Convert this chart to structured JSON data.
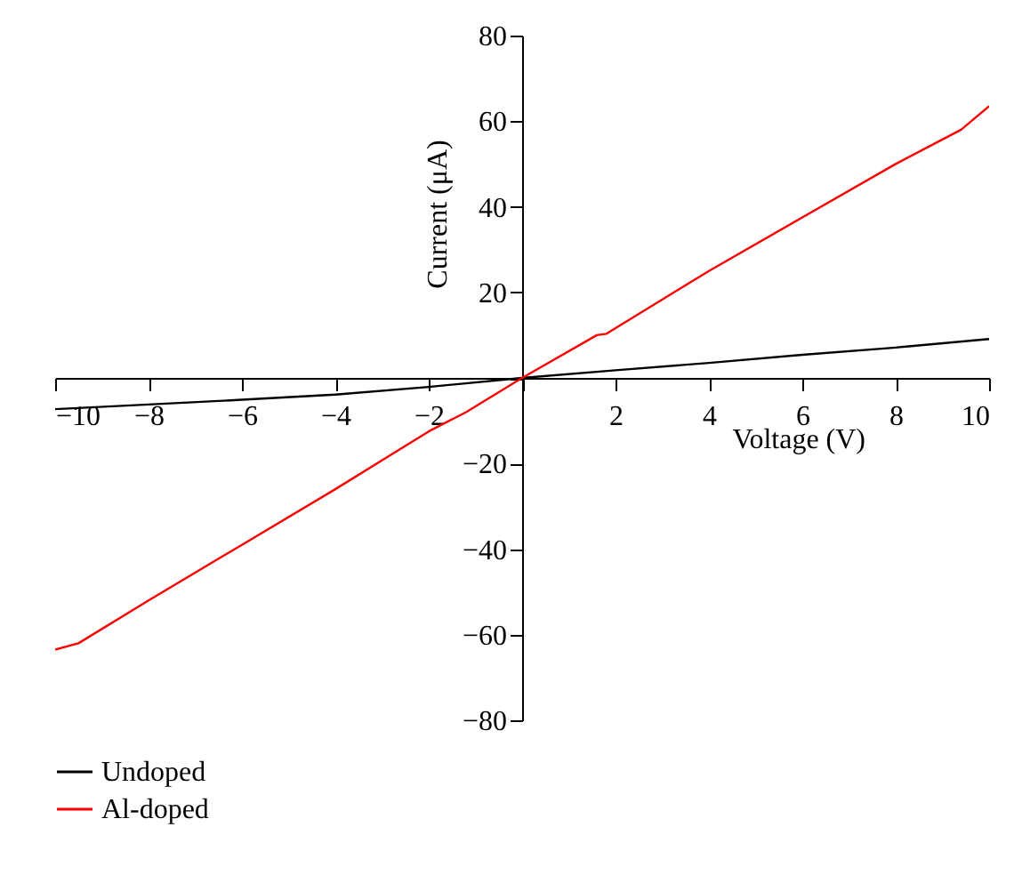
{
  "chart_data": {
    "type": "line",
    "xlabel": "Voltage (V)",
    "ylabel": "Current (μA)",
    "xlim": [
      -10,
      10
    ],
    "ylim": [
      -80,
      80
    ],
    "xticks": [
      -10,
      -8,
      -6,
      -4,
      -2,
      {
        "value": 0,
        "label": null
      },
      2,
      4,
      6,
      8,
      10
    ],
    "yticks": [
      -80,
      -60,
      -40,
      -20,
      {
        "value": 0,
        "label": null
      },
      20,
      40,
      60,
      80
    ],
    "legend": "bottom left",
    "series": [
      {
        "name": "Undoped",
        "color": "#000000",
        "x": [
          -10,
          -8,
          -6,
          -4,
          -2,
          0,
          2,
          4,
          6,
          8,
          10
        ],
        "values": [
          -7.3,
          -6.2,
          -5.1,
          -3.9,
          -2.1,
          0,
          1.8,
          3.5,
          5.4,
          7.1,
          9.1
        ]
      },
      {
        "name": "Al-doped",
        "color": "#ff0000",
        "x": [
          -10,
          -9.5,
          -8,
          -6,
          -4,
          -2,
          -1.2,
          0,
          1.6,
          1.8,
          4,
          6,
          8,
          9.4,
          10
        ],
        "values": [
          -63.5,
          -62,
          -52,
          -39,
          -26,
          -12.5,
          -8,
          0,
          10,
          10.3,
          25,
          37.5,
          50,
          58,
          63.5
        ]
      }
    ]
  }
}
